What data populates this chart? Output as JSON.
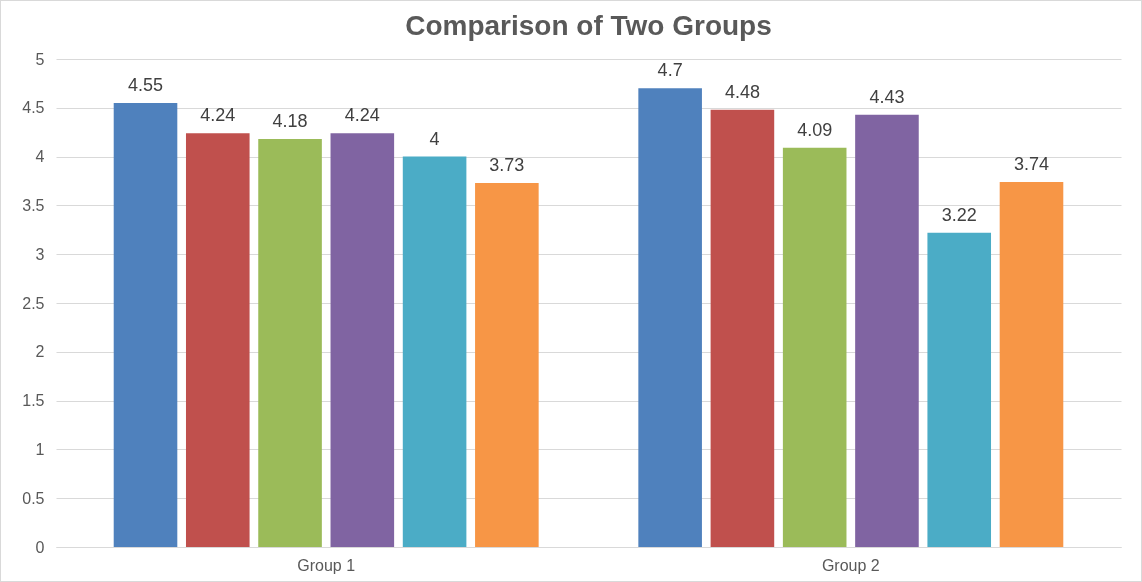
{
  "chart_data": {
    "type": "bar",
    "title": "Comparison of Two Groups",
    "categories": [
      "Group 1",
      "Group 2"
    ],
    "series": [
      {
        "color": "#4f81bd",
        "values": [
          4.55,
          4.7
        ]
      },
      {
        "color": "#c0504d",
        "values": [
          4.24,
          4.48
        ]
      },
      {
        "color": "#9bbb59",
        "values": [
          4.18,
          4.09
        ]
      },
      {
        "color": "#8064a2",
        "values": [
          4.24,
          4.43
        ]
      },
      {
        "color": "#4bacc6",
        "values": [
          4,
          3.22
        ]
      },
      {
        "color": "#f79646",
        "values": [
          3.73,
          3.74
        ]
      }
    ],
    "ylim": [
      0,
      5
    ],
    "yticks": [
      0,
      0.5,
      1,
      1.5,
      2,
      2.5,
      3,
      3.5,
      4,
      4.5,
      5
    ],
    "grid": "y",
    "data_labels": true
  }
}
